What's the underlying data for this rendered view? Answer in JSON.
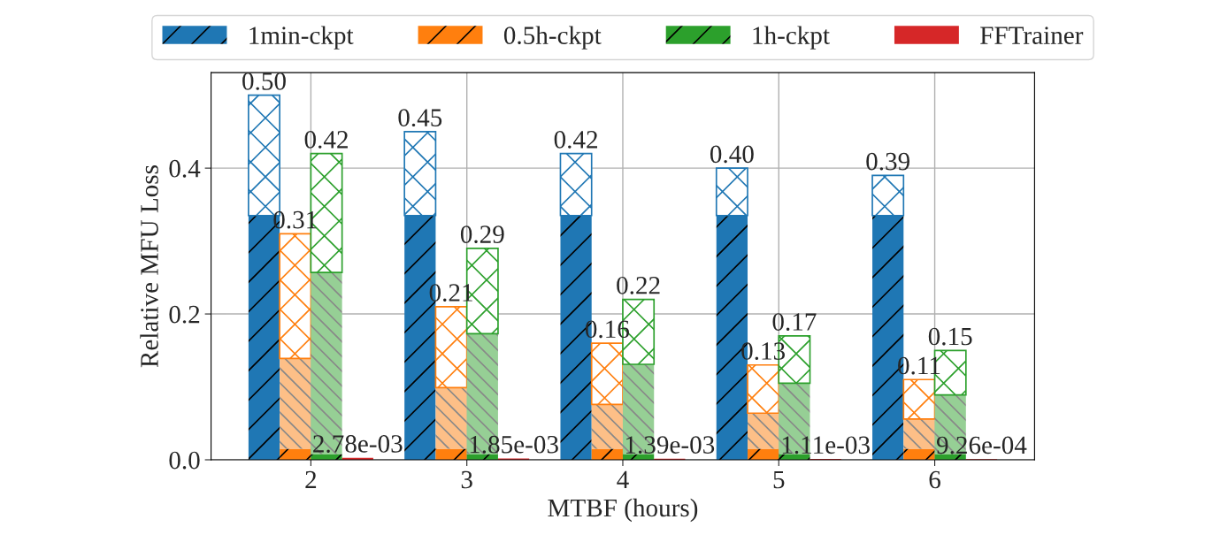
{
  "chart_data": {
    "type": "bar",
    "xlabel": "MTBF (hours)",
    "ylabel": "Relative MFU Loss",
    "xlim": [
      1.36,
      6.64
    ],
    "xticks": [
      2,
      3,
      4,
      5,
      6
    ],
    "ylim": [
      0,
      0.531
    ],
    "yticks": [
      {
        "value": 0,
        "label": "0.0"
      },
      {
        "value": 0.2,
        "label": "0.2"
      },
      {
        "value": 0.4,
        "label": "0.4"
      }
    ],
    "grid": true,
    "legend": "top",
    "series": [
      {
        "name": "1min-ckpt",
        "color": "#1f77b4",
        "x": [
          1.7,
          2.7,
          3.7,
          4.7,
          5.7
        ],
        "base": [
          0,
          0,
          0,
          0,
          0
        ],
        "values": [
          0.335,
          0.335,
          0.335,
          0.335,
          0.335
        ]
      },
      {
        "color": "#1f77b4",
        "x": [
          1.7,
          2.7,
          3.7,
          4.7,
          5.7
        ],
        "base": [
          0.335,
          0.335,
          0.335,
          0.335,
          0.335
        ],
        "values": [
          0.165,
          0.115,
          0.085,
          0.065,
          0.055
        ],
        "value_labels": [
          "0.50",
          "0.45",
          "0.42",
          "0.40",
          "0.39"
        ]
      },
      {
        "name": "0.5h-ckpt",
        "color": "#ff7f0e",
        "x": [
          1.9,
          2.9,
          3.9,
          4.9,
          5.9
        ],
        "base": [
          0,
          0,
          0,
          0,
          0
        ],
        "values": [
          0.015,
          0.015,
          0.015,
          0.015,
          0.015
        ]
      },
      {
        "color": "#fdbf87",
        "x": [
          1.9,
          2.9,
          3.9,
          4.9,
          5.9
        ],
        "base": [
          0.015,
          0.015,
          0.015,
          0.015,
          0.015
        ],
        "values": [
          0.124,
          0.084,
          0.061,
          0.049,
          0.041
        ]
      },
      {
        "color": "#ff7f0e",
        "x": [
          1.9,
          2.9,
          3.9,
          4.9,
          5.9
        ],
        "base": [
          0.139,
          0.099,
          0.076,
          0.064,
          0.056
        ],
        "values": [
          0.171,
          0.111,
          0.084,
          0.066,
          0.054
        ],
        "value_labels": [
          "0.31",
          "0.21",
          "0.16",
          "0.13",
          "0.11"
        ]
      },
      {
        "name": "1h-ckpt",
        "color": "#2ca02c",
        "x": [
          2.1,
          3.1,
          4.1,
          5.1,
          6.1
        ],
        "base": [
          0,
          0,
          0,
          0,
          0
        ],
        "values": [
          0.008,
          0.008,
          0.008,
          0.008,
          0.008
        ]
      },
      {
        "color": "#96cf95",
        "x": [
          2.1,
          3.1,
          4.1,
          5.1,
          6.1
        ],
        "base": [
          0.008,
          0.008,
          0.008,
          0.008,
          0.008
        ],
        "values": [
          0.249,
          0.165,
          0.123,
          0.097,
          0.081
        ]
      },
      {
        "color": "#2ca02c",
        "x": [
          2.1,
          3.1,
          4.1,
          5.1,
          6.1
        ],
        "base": [
          0.257,
          0.173,
          0.131,
          0.105,
          0.089
        ],
        "values": [
          0.163,
          0.117,
          0.089,
          0.065,
          0.061
        ],
        "value_labels": [
          "0.42",
          "0.29",
          "0.22",
          "0.17",
          "0.15"
        ]
      },
      {
        "name": "FFTrainer",
        "color": "#d62728",
        "x": [
          2.3,
          3.3,
          4.3,
          5.3,
          6.3
        ],
        "base": [
          0,
          0,
          0,
          0,
          0
        ],
        "values": [
          0.00278,
          0.00185,
          0.00139,
          0.00111,
          0.000926
        ],
        "value_labels": [
          "2.78e-03",
          "1.85e-03",
          "1.39e-03",
          "1.11e-03",
          "9.26e-04"
        ]
      }
    ]
  }
}
